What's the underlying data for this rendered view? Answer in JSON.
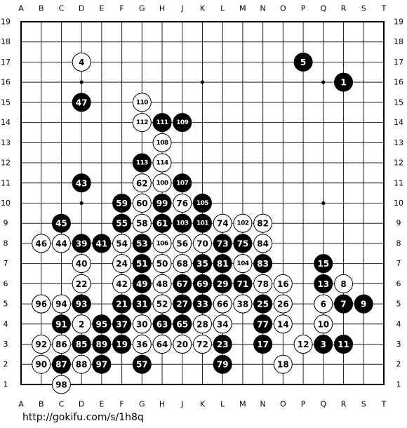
{
  "board": {
    "columns": [
      "A",
      "B",
      "C",
      "D",
      "E",
      "F",
      "G",
      "H",
      "J",
      "K",
      "L",
      "M",
      "N",
      "O",
      "P",
      "Q",
      "R",
      "S",
      "T"
    ],
    "rows": [
      19,
      18,
      17,
      16,
      15,
      14,
      13,
      12,
      11,
      10,
      9,
      8,
      7,
      6,
      5,
      4,
      3,
      2,
      1
    ],
    "stones": [
      {
        "label": 1,
        "color": "black",
        "col": "R",
        "row": 16
      },
      {
        "label": 2,
        "color": "white",
        "col": "D",
        "row": 4
      },
      {
        "label": 3,
        "color": "black",
        "col": "Q",
        "row": 3
      },
      {
        "label": 4,
        "color": "white",
        "col": "D",
        "row": 17
      },
      {
        "label": 5,
        "color": "black",
        "col": "P",
        "row": 17
      },
      {
        "label": 6,
        "color": "white",
        "col": "Q",
        "row": 5
      },
      {
        "label": 7,
        "color": "black",
        "col": "R",
        "row": 5
      },
      {
        "label": 8,
        "color": "white",
        "col": "R",
        "row": 6
      },
      {
        "label": 9,
        "color": "black",
        "col": "S",
        "row": 5
      },
      {
        "label": 10,
        "color": "white",
        "col": "Q",
        "row": 4
      },
      {
        "label": 11,
        "color": "black",
        "col": "R",
        "row": 3
      },
      {
        "label": 12,
        "color": "white",
        "col": "P",
        "row": 3
      },
      {
        "label": 13,
        "color": "black",
        "col": "Q",
        "row": 6
      },
      {
        "label": 14,
        "color": "white",
        "col": "O",
        "row": 4
      },
      {
        "label": 15,
        "color": "black",
        "col": "Q",
        "row": 7
      },
      {
        "label": 16,
        "color": "white",
        "col": "O",
        "row": 6
      },
      {
        "label": 17,
        "color": "black",
        "col": "N",
        "row": 3
      },
      {
        "label": 18,
        "color": "white",
        "col": "O",
        "row": 2
      },
      {
        "label": 19,
        "color": "black",
        "col": "F",
        "row": 3
      },
      {
        "label": 20,
        "color": "white",
        "col": "J",
        "row": 3
      },
      {
        "label": 21,
        "color": "black",
        "col": "F",
        "row": 5
      },
      {
        "label": 22,
        "color": "white",
        "col": "D",
        "row": 6
      },
      {
        "label": 23,
        "color": "black",
        "col": "L",
        "row": 3
      },
      {
        "label": 24,
        "color": "white",
        "col": "F",
        "row": 7
      },
      {
        "label": 25,
        "color": "black",
        "col": "N",
        "row": 5
      },
      {
        "label": 26,
        "color": "white",
        "col": "O",
        "row": 5
      },
      {
        "label": 27,
        "color": "black",
        "col": "J",
        "row": 5
      },
      {
        "label": 28,
        "color": "white",
        "col": "K",
        "row": 4
      },
      {
        "label": 29,
        "color": "black",
        "col": "L",
        "row": 6
      },
      {
        "label": 30,
        "color": "white",
        "col": "G",
        "row": 4
      },
      {
        "label": 31,
        "color": "black",
        "col": "G",
        "row": 5
      },
      {
        "label": 33,
        "color": "black",
        "col": "K",
        "row": 5
      },
      {
        "label": 34,
        "color": "white",
        "col": "L",
        "row": 4
      },
      {
        "label": 35,
        "color": "black",
        "col": "K",
        "row": 7
      },
      {
        "label": 36,
        "color": "white",
        "col": "G",
        "row": 3
      },
      {
        "label": 37,
        "color": "black",
        "col": "F",
        "row": 4
      },
      {
        "label": 38,
        "color": "white",
        "col": "M",
        "row": 5
      },
      {
        "label": 39,
        "color": "black",
        "col": "D",
        "row": 8
      },
      {
        "label": 40,
        "color": "white",
        "col": "D",
        "row": 7
      },
      {
        "label": 41,
        "color": "black",
        "col": "E",
        "row": 8
      },
      {
        "label": 42,
        "color": "white",
        "col": "F",
        "row": 6
      },
      {
        "label": 43,
        "color": "black",
        "col": "D",
        "row": 11
      },
      {
        "label": 44,
        "color": "white",
        "col": "C",
        "row": 8
      },
      {
        "label": 45,
        "color": "black",
        "col": "C",
        "row": 9
      },
      {
        "label": 46,
        "color": "white",
        "col": "B",
        "row": 8
      },
      {
        "label": 47,
        "color": "black",
        "col": "D",
        "row": 15
      },
      {
        "label": 48,
        "color": "white",
        "col": "H",
        "row": 6
      },
      {
        "label": 49,
        "color": "black",
        "col": "G",
        "row": 6
      },
      {
        "label": 50,
        "color": "white",
        "col": "H",
        "row": 7
      },
      {
        "label": 51,
        "color": "black",
        "col": "G",
        "row": 7
      },
      {
        "label": 52,
        "color": "white",
        "col": "H",
        "row": 5
      },
      {
        "label": 53,
        "color": "black",
        "col": "G",
        "row": 8
      },
      {
        "label": 54,
        "color": "white",
        "col": "F",
        "row": 8
      },
      {
        "label": 55,
        "color": "black",
        "col": "F",
        "row": 9
      },
      {
        "label": 56,
        "color": "white",
        "col": "J",
        "row": 8
      },
      {
        "label": 57,
        "color": "black",
        "col": "G",
        "row": 2
      },
      {
        "label": 58,
        "color": "white",
        "col": "G",
        "row": 9
      },
      {
        "label": 59,
        "color": "black",
        "col": "F",
        "row": 10
      },
      {
        "label": 60,
        "color": "white",
        "col": "G",
        "row": 10
      },
      {
        "label": 61,
        "color": "black",
        "col": "H",
        "row": 9
      },
      {
        "label": 62,
        "color": "white",
        "col": "G",
        "row": 11
      },
      {
        "label": 63,
        "color": "black",
        "col": "H",
        "row": 4
      },
      {
        "label": 64,
        "color": "white",
        "col": "H",
        "row": 3
      },
      {
        "label": 65,
        "color": "black",
        "col": "J",
        "row": 4
      },
      {
        "label": 66,
        "color": "white",
        "col": "L",
        "row": 5
      },
      {
        "label": 67,
        "color": "black",
        "col": "J",
        "row": 6
      },
      {
        "label": 68,
        "color": "white",
        "col": "J",
        "row": 7
      },
      {
        "label": 69,
        "color": "black",
        "col": "K",
        "row": 6
      },
      {
        "label": 70,
        "color": "white",
        "col": "K",
        "row": 8
      },
      {
        "label": 71,
        "color": "black",
        "col": "M",
        "row": 6
      },
      {
        "label": 72,
        "color": "white",
        "col": "K",
        "row": 3
      },
      {
        "label": 73,
        "color": "black",
        "col": "L",
        "row": 8
      },
      {
        "label": 74,
        "color": "white",
        "col": "L",
        "row": 9
      },
      {
        "label": 75,
        "color": "black",
        "col": "M",
        "row": 8
      },
      {
        "label": 76,
        "color": "white",
        "col": "J",
        "row": 10
      },
      {
        "label": 77,
        "color": "black",
        "col": "N",
        "row": 4
      },
      {
        "label": 78,
        "color": "white",
        "col": "N",
        "row": 6
      },
      {
        "label": 79,
        "color": "black",
        "col": "L",
        "row": 2
      },
      {
        "label": 81,
        "color": "black",
        "col": "L",
        "row": 7
      },
      {
        "label": 82,
        "color": "white",
        "col": "N",
        "row": 9
      },
      {
        "label": 83,
        "color": "black",
        "col": "N",
        "row": 7
      },
      {
        "label": 84,
        "color": "white",
        "col": "N",
        "row": 8
      },
      {
        "label": 85,
        "color": "black",
        "col": "D",
        "row": 3
      },
      {
        "label": 86,
        "color": "white",
        "col": "C",
        "row": 3
      },
      {
        "label": 87,
        "color": "black",
        "col": "C",
        "row": 2
      },
      {
        "label": 88,
        "color": "white",
        "col": "D",
        "row": 2
      },
      {
        "label": 89,
        "color": "black",
        "col": "E",
        "row": 3
      },
      {
        "label": 90,
        "color": "white",
        "col": "B",
        "row": 2
      },
      {
        "label": 91,
        "color": "black",
        "col": "C",
        "row": 4
      },
      {
        "label": 92,
        "color": "white",
        "col": "B",
        "row": 3
      },
      {
        "label": 93,
        "color": "black",
        "col": "D",
        "row": 5
      },
      {
        "label": 94,
        "color": "white",
        "col": "C",
        "row": 5
      },
      {
        "label": 95,
        "color": "black",
        "col": "E",
        "row": 4
      },
      {
        "label": 96,
        "color": "white",
        "col": "B",
        "row": 5
      },
      {
        "label": 97,
        "color": "black",
        "col": "E",
        "row": 2
      },
      {
        "label": 98,
        "color": "white",
        "col": "C",
        "row": 1
      },
      {
        "label": 99,
        "color": "black",
        "col": "H",
        "row": 10
      },
      {
        "label": 100,
        "color": "white",
        "col": "H",
        "row": 11
      },
      {
        "label": 101,
        "color": "black",
        "col": "K",
        "row": 9
      },
      {
        "label": 102,
        "color": "white",
        "col": "M",
        "row": 9
      },
      {
        "label": 103,
        "color": "black",
        "col": "J",
        "row": 9
      },
      {
        "label": 104,
        "color": "white",
        "col": "M",
        "row": 7
      },
      {
        "label": 105,
        "color": "black",
        "col": "K",
        "row": 10
      },
      {
        "label": 106,
        "color": "white",
        "col": "H",
        "row": 8
      },
      {
        "label": 107,
        "color": "black",
        "col": "J",
        "row": 11
      },
      {
        "label": 108,
        "color": "white",
        "col": "H",
        "row": 13
      },
      {
        "label": 109,
        "color": "black",
        "col": "J",
        "row": 14
      },
      {
        "label": 110,
        "color": "white",
        "col": "G",
        "row": 15
      },
      {
        "label": 111,
        "color": "black",
        "col": "H",
        "row": 14
      },
      {
        "label": 112,
        "color": "white",
        "col": "G",
        "row": 14
      },
      {
        "label": 113,
        "color": "black",
        "col": "G",
        "row": 12
      },
      {
        "label": 114,
        "color": "white",
        "col": "H",
        "row": 12
      }
    ]
  },
  "footer": {
    "url": "http://gokifu.com/s/1h8q"
  }
}
